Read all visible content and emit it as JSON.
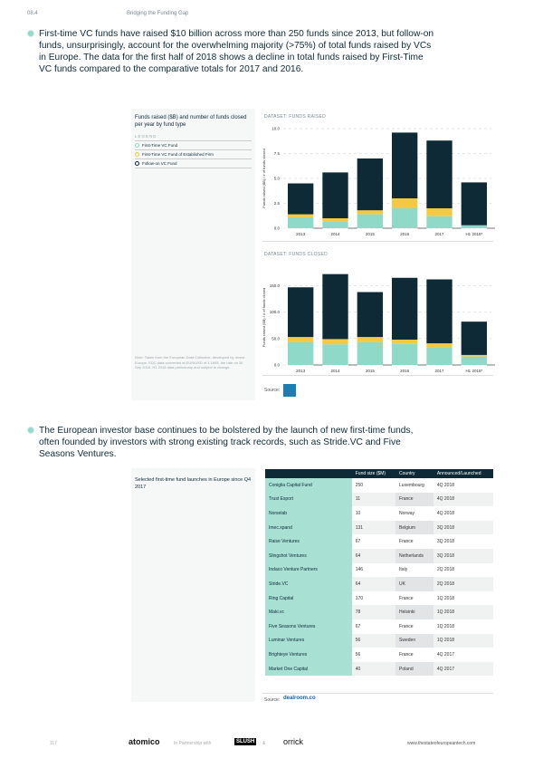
{
  "header": {
    "section": "08.4",
    "title": "Bridging the Funding Gap"
  },
  "bullet1": "First-time VC funds have raised $10 billion across more than 250 funds since 2013, but follow-on funds, unsurprisingly, account for the overwhelming majority (>75%) of total funds raised by VCs in Europe. The data for the first half of 2018 shows a decline in total funds raised by First-Time VC funds compared to the comparative totals for 2017 and 2016.",
  "chart_panel": {
    "title": "Funds raised ($B) and number of funds closed per year by fund type",
    "legend_label": "LEGEND",
    "legend": [
      {
        "label": "First-Time VC Fund",
        "color": "#8fd9c9"
      },
      {
        "label": "First-Time VC Fund of Established Firm",
        "color": "#f5c842"
      },
      {
        "label": "Follow-on VC Fund",
        "color": "#0d2a36"
      }
    ],
    "note": "Note: Taken from the European Data Collective, developed by Invest Europe. EDC data converted at EUR/USD of 1.1605, the rate on 30 Sep 2018. H1 2018 data preliminary and subject to change.",
    "source_label": "Source:"
  },
  "chart_data": [
    {
      "type": "bar",
      "stacked": true,
      "title": "DATASET: FUNDS RAISED",
      "ylabel": "Funds raised ($B) / # of funds closed",
      "ylim": [
        0,
        10
      ],
      "yticks": [
        "0.0",
        "2.5",
        "5.0",
        "7.5",
        "10.0"
      ],
      "grid": true,
      "categories": [
        "2013",
        "2014",
        "2015",
        "2016",
        "2017",
        "H1 2018*"
      ],
      "series": [
        {
          "name": "First-Time VC Fund",
          "values": [
            1.1,
            0.7,
            1.4,
            2.0,
            1.2,
            0.3
          ]
        },
        {
          "name": "First-Time VC Fund of Established Firm",
          "values": [
            0.3,
            0.3,
            0.4,
            1.0,
            0.8,
            0.0
          ]
        },
        {
          "name": "Follow-on VC Fund",
          "values": [
            3.1,
            4.6,
            5.2,
            6.6,
            6.8,
            4.3
          ]
        }
      ]
    },
    {
      "type": "bar",
      "stacked": true,
      "title": "DATASET: FUNDS CLOSED",
      "ylabel": "Funds raised ($B) / # of funds closed",
      "ylim": [
        0,
        180
      ],
      "yticks": [
        "0.0",
        "50.0",
        "100.0",
        "150.0"
      ],
      "grid": true,
      "categories": [
        "2013",
        "2014",
        "2015",
        "2016",
        "2017",
        "H1 2018*"
      ],
      "series": [
        {
          "name": "First-Time VC Fund",
          "values": [
            43,
            39,
            43,
            40,
            34,
            16
          ]
        },
        {
          "name": "First-Time VC Fund of Established Firm",
          "values": [
            10,
            10,
            10,
            8,
            7,
            3
          ]
        },
        {
          "name": "Follow-on VC Fund",
          "values": [
            94,
            123,
            85,
            117,
            121,
            63
          ]
        }
      ]
    }
  ],
  "bullet2": "The European investor base continues to be bolstered by the launch of new first-time funds, often founded by investors with strong existing track records, such as Stride.VC and Five Seasons Ventures.",
  "table_panel": {
    "title": "Selected first-time fund launches in Europe since Q4 2017",
    "source_label": "Source:",
    "source_logo": "dealroom.co",
    "columns": [
      "",
      "Fund size ($M)",
      "Country",
      "Announced/Launched"
    ],
    "rows": [
      [
        "Coniglia Capital Fund",
        "250",
        "Luxembourg",
        "4Q 2018"
      ],
      [
        "Trust Esport",
        "11",
        "France",
        "4Q 2018"
      ],
      [
        "Norselab",
        "10",
        "Norway",
        "4Q 2018"
      ],
      [
        "Imec.xpand",
        "131",
        "Belgium",
        "3Q 2018"
      ],
      [
        "Raise Ventures",
        "67",
        "France",
        "3Q 2018"
      ],
      [
        "Slingshot Ventures",
        "64",
        "Netherlands",
        "3Q 2018"
      ],
      [
        "Indaco Venture Partners",
        "146",
        "Italy",
        "2Q 2018"
      ],
      [
        "Stride.VC",
        "64",
        "UK",
        "2Q 2018"
      ],
      [
        "Ring Capital",
        "170",
        "France",
        "1Q 2018"
      ],
      [
        "Maki.vc",
        "78",
        "Helsinki",
        "1Q 2018"
      ],
      [
        "Five Seasons Ventures",
        "67",
        "France",
        "1Q 2018"
      ],
      [
        "Luminar Ventures",
        "56",
        "Sweden",
        "1Q 2018"
      ],
      [
        "Brighteye Ventures",
        "56",
        "France",
        "4Q 2017"
      ],
      [
        "Market One Capital",
        "40",
        "Poland",
        "4Q 2017"
      ]
    ]
  },
  "footer": {
    "page": "117",
    "logo1": "atomico",
    "partner_text": "In Partnership with",
    "logo2": "SLUSH",
    "amp": "&",
    "logo3": "orrick",
    "url": "www.thestateofeuropeantech.com"
  }
}
